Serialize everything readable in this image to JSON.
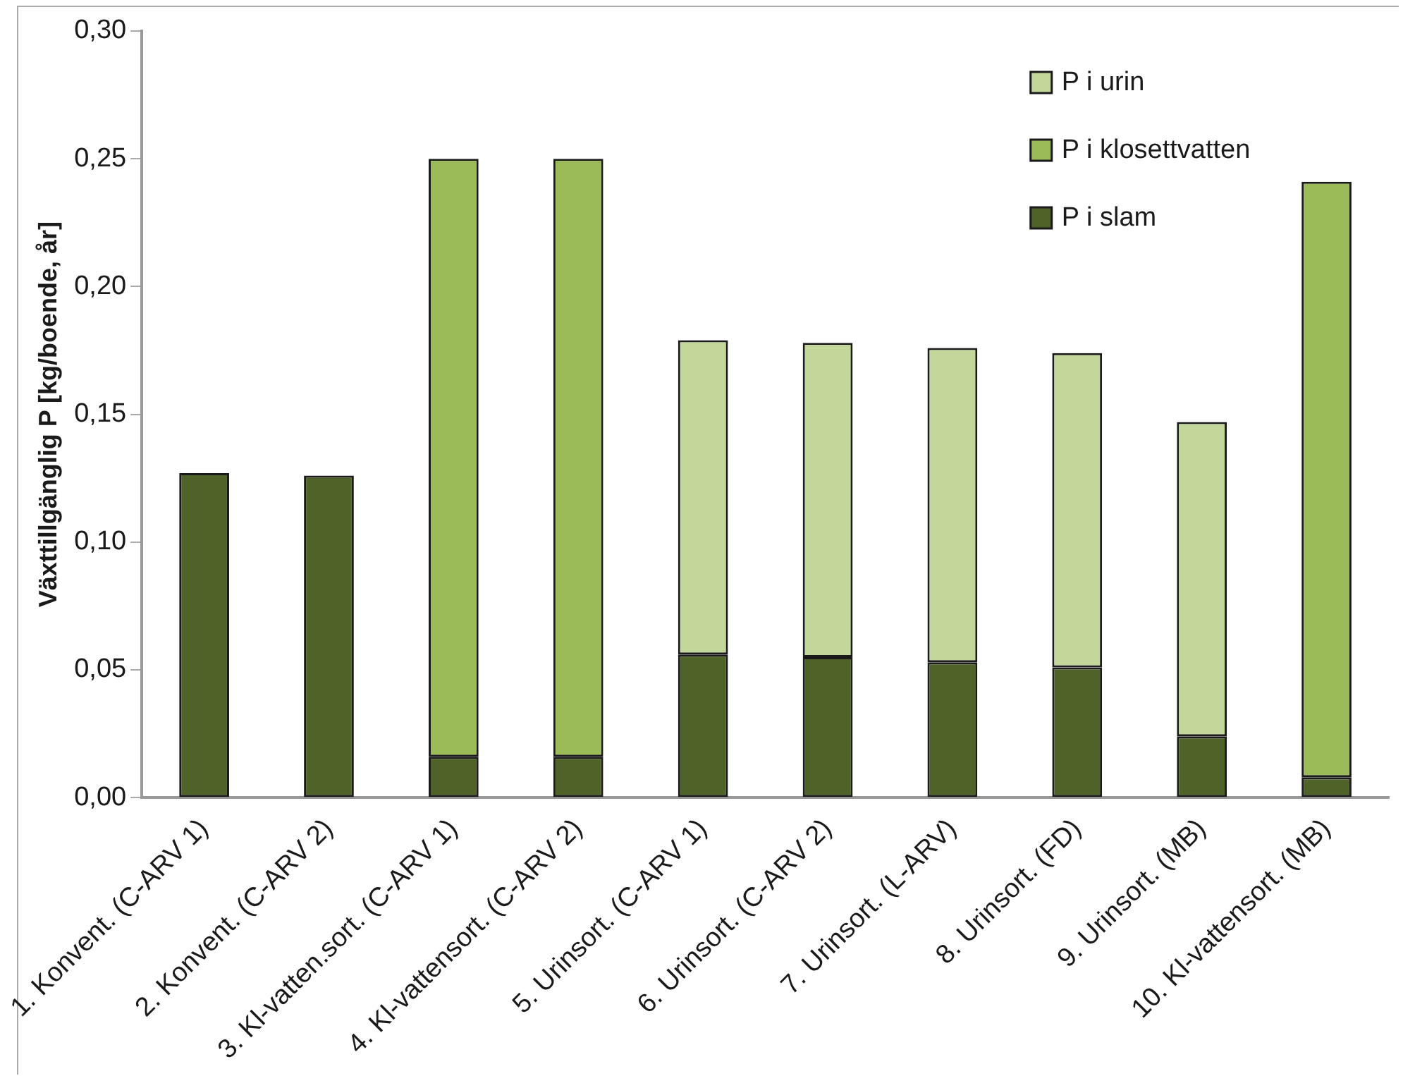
{
  "chart_data": {
    "type": "bar",
    "stacked": true,
    "ylabel": "Växttillgänglig P [kg/boende, år]",
    "categories": [
      "1. Konvent. (C-ARV 1)",
      "2. Konvent. (C-ARV 2)",
      "3. Kl-vatten.sort. (C-ARV 1)",
      "4. Kl-vattensort. (C-ARV 2)",
      "5. Urinsort. (C-ARV 1)",
      "6. Urinsort. (C-ARV 2)",
      "7. Urinsort. (L-ARV)",
      "8. Urinsort. (FD)",
      "9. Urinsort. (MB)",
      "10. Kl-vattensort. (MB)"
    ],
    "series": [
      {
        "name": "P i slam",
        "color": "#4f6228",
        "values": [
          0.127,
          0.126,
          0.016,
          0.016,
          0.056,
          0.055,
          0.053,
          0.051,
          0.024,
          0.008
        ]
      },
      {
        "name": "P i klosettvatten",
        "color": "#9bbb59",
        "values": [
          null,
          null,
          0.234,
          0.234,
          null,
          null,
          null,
          null,
          null,
          0.233
        ]
      },
      {
        "name": "P i urin",
        "color": "#c4d79b",
        "values": [
          null,
          null,
          null,
          null,
          0.123,
          0.123,
          0.123,
          0.123,
          0.123,
          null
        ]
      }
    ],
    "ylim": [
      0,
      0.3
    ],
    "yticks": [
      {
        "value": 0,
        "label": "0,00"
      },
      {
        "value": 0.05,
        "label": "0,05"
      },
      {
        "value": 0.1,
        "label": "0,10"
      },
      {
        "value": 0.15,
        "label": "0,15"
      },
      {
        "value": 0.2,
        "label": "0,20"
      },
      {
        "value": 0.25,
        "label": "0,25"
      },
      {
        "value": 0.3,
        "label": "0,30"
      }
    ],
    "grid": false,
    "legend": "top right"
  }
}
